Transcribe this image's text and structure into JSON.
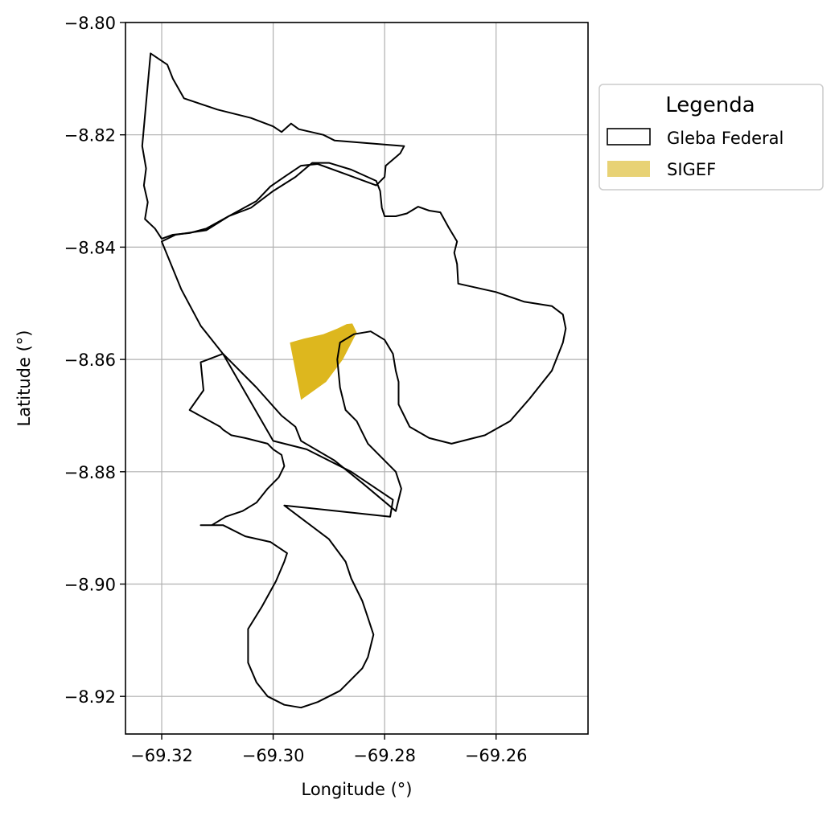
{
  "map": {
    "xlabel": "Longitude (°)",
    "ylabel": "Latitude (°)",
    "xlim": [
      -69.3265,
      -69.2435
    ],
    "ylim": [
      -8.9267,
      -8.8
    ],
    "x_ticks": [
      -69.32,
      -69.3,
      -69.28,
      -69.26
    ],
    "x_tick_labels": [
      "−69.32",
      "−69.30",
      "−69.28",
      "−69.26"
    ],
    "y_ticks": [
      -8.8,
      -8.82,
      -8.84,
      -8.86,
      -8.88,
      -8.9,
      -8.92
    ],
    "y_tick_labels": [
      "−8.80",
      "−8.82",
      "−8.84",
      "−8.86",
      "−8.88",
      "−8.90",
      "−8.92"
    ],
    "grid": true,
    "legend": {
      "title": "Legenda",
      "placement": "outside-upper-right",
      "items": [
        {
          "label": "Gleba Federal",
          "kind": "outline"
        },
        {
          "label": "SIGEF",
          "kind": "fill"
        }
      ]
    },
    "colors": {
      "gleba_edge": "#000000",
      "sigef_fill": "#DDB71E",
      "sigef_legend": "#E8D275",
      "grid": "#b0b0b0"
    },
    "layers": {
      "gleba_polygons": [
        [
          [
            -69.322,
            -8.8055
          ],
          [
            -69.319,
            -8.8075
          ],
          [
            -69.318,
            -8.81
          ],
          [
            -69.316,
            -8.8135
          ],
          [
            -69.31,
            -8.8155
          ],
          [
            -69.304,
            -8.817
          ],
          [
            -69.3,
            -8.8185
          ],
          [
            -69.2985,
            -8.8195
          ],
          [
            -69.2968,
            -8.818
          ],
          [
            -69.2954,
            -8.819
          ],
          [
            -69.291,
            -8.82
          ],
          [
            -69.289,
            -8.821
          ],
          [
            -69.2765,
            -8.822
          ],
          [
            -69.2772,
            -8.8233
          ],
          [
            -69.2798,
            -8.8255
          ],
          [
            -69.28,
            -8.8275
          ],
          [
            -69.2815,
            -8.829
          ],
          [
            -69.287,
            -8.827
          ],
          [
            -69.292,
            -8.8252
          ],
          [
            -69.295,
            -8.8255
          ],
          [
            -69.298,
            -8.8275
          ],
          [
            -69.3005,
            -8.8292
          ],
          [
            -69.303,
            -8.8318
          ],
          [
            -69.308,
            -8.8345
          ],
          [
            -69.312,
            -8.8367
          ],
          [
            -69.315,
            -8.8375
          ],
          [
            -69.318,
            -8.8378
          ],
          [
            -69.32,
            -8.8385
          ],
          [
            -69.3212,
            -8.8367
          ],
          [
            -69.323,
            -8.835
          ],
          [
            -69.3225,
            -8.832
          ],
          [
            -69.3232,
            -8.829
          ],
          [
            -69.3228,
            -8.826
          ],
          [
            -69.3235,
            -8.822
          ],
          [
            -69.322,
            -8.8055
          ]
        ],
        [
          [
            -69.32,
            -8.839
          ],
          [
            -69.3175,
            -8.8378
          ],
          [
            -69.312,
            -8.837
          ],
          [
            -69.308,
            -8.8345
          ],
          [
            -69.304,
            -8.833
          ],
          [
            -69.3,
            -8.83
          ],
          [
            -69.296,
            -8.8275
          ],
          [
            -69.293,
            -8.825
          ],
          [
            -69.29,
            -8.825
          ],
          [
            -69.286,
            -8.8262
          ],
          [
            -69.2815,
            -8.8282
          ],
          [
            -69.2808,
            -8.83
          ],
          [
            -69.2805,
            -8.833
          ],
          [
            -69.28,
            -8.8345
          ],
          [
            -69.278,
            -8.8345
          ],
          [
            -69.276,
            -8.834
          ],
          [
            -69.274,
            -8.8328
          ],
          [
            -69.272,
            -8.8335
          ],
          [
            -69.27,
            -8.8338
          ],
          [
            -69.2685,
            -8.8365
          ],
          [
            -69.267,
            -8.839
          ],
          [
            -69.2675,
            -8.841
          ],
          [
            -69.267,
            -8.843
          ],
          [
            -69.2668,
            -8.8465
          ],
          [
            -69.26,
            -8.848
          ],
          [
            -69.255,
            -8.8497
          ],
          [
            -69.25,
            -8.8505
          ],
          [
            -69.248,
            -8.852
          ],
          [
            -69.2475,
            -8.8545
          ],
          [
            -69.248,
            -8.857
          ],
          [
            -69.25,
            -8.862
          ],
          [
            -69.254,
            -8.867
          ],
          [
            -69.2575,
            -8.871
          ],
          [
            -69.262,
            -8.8735
          ],
          [
            -69.268,
            -8.875
          ],
          [
            -69.272,
            -8.874
          ],
          [
            -69.2755,
            -8.872
          ],
          [
            -69.2765,
            -8.87
          ],
          [
            -69.2775,
            -8.868
          ],
          [
            -69.2775,
            -8.864
          ],
          [
            -69.278,
            -8.862
          ],
          [
            -69.2785,
            -8.859
          ],
          [
            -69.28,
            -8.8565
          ],
          [
            -69.2825,
            -8.855
          ],
          [
            -69.2855,
            -8.8555
          ],
          [
            -69.288,
            -8.857
          ],
          [
            -69.2885,
            -8.86
          ],
          [
            -69.288,
            -8.865
          ],
          [
            -69.287,
            -8.869
          ],
          [
            -69.285,
            -8.871
          ],
          [
            -69.284,
            -8.873
          ],
          [
            -69.283,
            -8.875
          ],
          [
            -69.28,
            -8.878
          ],
          [
            -69.278,
            -8.88
          ],
          [
            -69.277,
            -8.883
          ],
          [
            -69.278,
            -8.887
          ],
          [
            -69.284,
            -8.882
          ],
          [
            -69.289,
            -8.878
          ],
          [
            -69.295,
            -8.8745
          ],
          [
            -69.296,
            -8.872
          ],
          [
            -69.2985,
            -8.87
          ],
          [
            -69.303,
            -8.865
          ],
          [
            -69.309,
            -8.859
          ],
          [
            -69.313,
            -8.854
          ],
          [
            -69.3165,
            -8.8475
          ],
          [
            -69.32,
            -8.839
          ]
        ],
        [
          [
            -69.309,
            -8.859
          ],
          [
            -69.313,
            -8.8605
          ],
          [
            -69.3125,
            -8.8655
          ],
          [
            -69.315,
            -8.869
          ],
          [
            -69.3095,
            -8.872
          ],
          [
            -69.309,
            -8.8725
          ],
          [
            -69.3075,
            -8.8735
          ],
          [
            -69.305,
            -8.874
          ],
          [
            -69.303,
            -8.8745
          ],
          [
            -69.301,
            -8.875
          ],
          [
            -69.3,
            -8.876
          ],
          [
            -69.2985,
            -8.877
          ],
          [
            -69.298,
            -8.879
          ],
          [
            -69.299,
            -8.881
          ],
          [
            -69.301,
            -8.883
          ],
          [
            -69.303,
            -8.8855
          ],
          [
            -69.3055,
            -8.887
          ],
          [
            -69.3085,
            -8.888
          ],
          [
            -69.311,
            -8.8895
          ],
          [
            -69.313,
            -8.8895
          ],
          [
            -69.309,
            -8.8895
          ],
          [
            -69.305,
            -8.8915
          ],
          [
            -69.3005,
            -8.8925
          ],
          [
            -69.2975,
            -8.8945
          ],
          [
            -69.298,
            -8.896
          ],
          [
            -69.2995,
            -8.8995
          ],
          [
            -69.302,
            -8.904
          ],
          [
            -69.3045,
            -8.908
          ],
          [
            -69.3045,
            -8.914
          ],
          [
            -69.303,
            -8.9175
          ],
          [
            -69.301,
            -8.92
          ],
          [
            -69.298,
            -8.9215
          ],
          [
            -69.295,
            -8.922
          ],
          [
            -69.292,
            -8.921
          ],
          [
            -69.288,
            -8.919
          ],
          [
            -69.284,
            -8.915
          ],
          [
            -69.283,
            -8.913
          ],
          [
            -69.282,
            -8.909
          ],
          [
            -69.283,
            -8.906
          ],
          [
            -69.284,
            -8.903
          ],
          [
            -69.286,
            -8.899
          ],
          [
            -69.287,
            -8.896
          ],
          [
            -69.29,
            -8.892
          ],
          [
            -69.294,
            -8.889
          ],
          [
            -69.298,
            -8.886
          ],
          [
            -69.279,
            -8.888
          ],
          [
            -69.2785,
            -8.885
          ],
          [
            -69.286,
            -8.88
          ],
          [
            -69.294,
            -8.876
          ],
          [
            -69.3,
            -8.8745
          ],
          [
            -69.309,
            -8.859
          ]
        ]
      ],
      "sigef_polygon": [
        [
          -69.297,
          -8.857
        ],
        [
          -69.2945,
          -8.8563
        ],
        [
          -69.291,
          -8.8555
        ],
        [
          -69.2885,
          -8.8545
        ],
        [
          -69.2868,
          -8.8537
        ],
        [
          -69.2858,
          -8.8536
        ],
        [
          -69.285,
          -8.8552
        ],
        [
          -69.2875,
          -8.86
        ],
        [
          -69.2905,
          -8.864
        ],
        [
          -69.295,
          -8.8672
        ],
        [
          -69.297,
          -8.857
        ]
      ]
    }
  }
}
